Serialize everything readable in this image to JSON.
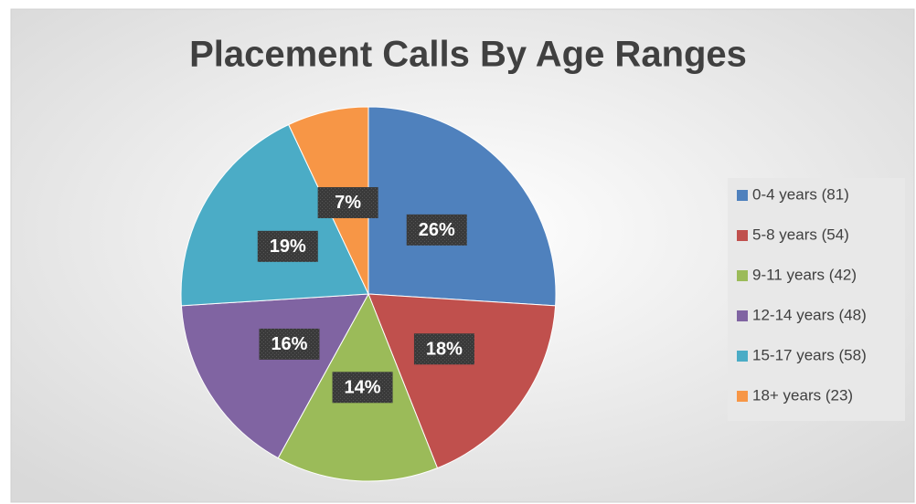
{
  "chart_data": {
    "type": "pie",
    "title": "Placement Calls By Age Ranges",
    "categories": [
      "0-4 years (81)",
      "5-8 years (54)",
      "9-11 years (42)",
      "12-14 years (48)",
      "15-17 years (58)",
      "18+ years (23)"
    ],
    "values": [
      26,
      18,
      14,
      16,
      19,
      7
    ],
    "value_labels": [
      "26%",
      "18%",
      "14%",
      "16%",
      "19%",
      "7%"
    ],
    "colors": [
      "#4f81bd",
      "#c0504d",
      "#9bbb59",
      "#8064a2",
      "#4bacc6",
      "#f79646"
    ],
    "legend": "right"
  }
}
